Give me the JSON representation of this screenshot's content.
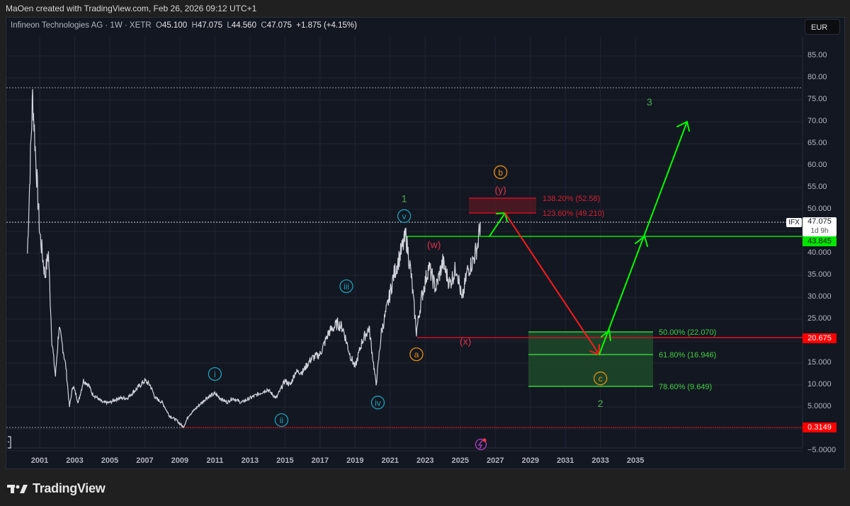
{
  "credit": "MaOen created with TradingView.com, Feb 26, 2026 09:12 UTC+1",
  "legend": {
    "symbol": "Infineon Technologies AG · 1W · XETR",
    "open_label": "O",
    "open": "45.100",
    "high_label": "H",
    "high": "47.075",
    "low_label": "L",
    "low": "44.560",
    "close_label": "C",
    "close": "47.075",
    "change": "+1.875 (+4.15%)"
  },
  "currency_button": "EUR",
  "price_tags": {
    "ticker": "IFX",
    "current": "47.075",
    "countdown": "1d 9h",
    "green_level": "43.845",
    "red_level": "20.675",
    "low_level": "0.3149"
  },
  "colors": {
    "background": "#131722",
    "green": "#00e600",
    "red": "#ff0000",
    "wave_cyan": "#1ba0b8",
    "wave_orange": "#e8900c",
    "wave_red": "#e0304a",
    "wave_green": "#4caf50",
    "price_line": "#d1d4dc"
  },
  "footer": {
    "brand": "TradingView"
  },
  "chart_data": {
    "type": "line",
    "title": "Infineon Technologies AG · 1W · XETR",
    "xlabel": "",
    "ylabel": "EUR",
    "x_ticks": [
      "2001",
      "2003",
      "2005",
      "2007",
      "2009",
      "2011",
      "2013",
      "2015",
      "2017",
      "2019",
      "2021",
      "2023",
      "2025",
      "2027",
      "2029",
      "2031",
      "2033",
      "2035"
    ],
    "y_ticks": [
      "85.00",
      "80.00",
      "75.00",
      "70.00",
      "65.00",
      "60.00",
      "55.00",
      "50.000",
      "45.000",
      "40.000",
      "35.000",
      "30.000",
      "25.000",
      "20.000",
      "15.000",
      "10.000",
      "5.0000",
      "0.3149",
      "-5.0000"
    ],
    "ylim": [
      -6,
      88
    ],
    "xlim": [
      2000,
      2039
    ],
    "grid": true,
    "series": [
      {
        "name": "IFX weekly close (approx.)",
        "x": [
          2000.3,
          2000.5,
          2000.6,
          2000.8,
          2001.0,
          2001.3,
          2001.5,
          2001.7,
          2001.9,
          2002.1,
          2002.3,
          2002.5,
          2002.7,
          2002.9,
          2003.2,
          2003.5,
          2003.8,
          2004.0,
          2004.3,
          2004.6,
          2005.0,
          2005.5,
          2006.0,
          2006.5,
          2007.0,
          2007.3,
          2007.6,
          2008.0,
          2008.4,
          2008.8,
          2009.2,
          2009.5,
          2010.0,
          2010.5,
          2011.0,
          2011.3,
          2011.7,
          2012.0,
          2012.5,
          2013.0,
          2013.5,
          2014.0,
          2014.5,
          2015.0,
          2015.3,
          2015.6,
          2016.0,
          2016.5,
          2017.0,
          2017.5,
          2018.0,
          2018.3,
          2018.7,
          2019.0,
          2019.4,
          2019.8,
          2020.2,
          2020.5,
          2020.9,
          2021.2,
          2021.6,
          2021.9,
          2022.2,
          2022.5,
          2022.8,
          2023.2,
          2023.6,
          2024.0,
          2024.4,
          2024.8,
          2025.1,
          2025.4,
          2025.7,
          2026.0,
          2026.15
        ],
        "y": [
          40,
          65,
          76,
          60,
          45,
          35,
          40,
          20,
          12,
          23,
          19,
          14,
          5,
          10,
          6,
          11,
          10,
          8,
          7,
          6,
          6,
          7,
          7,
          9,
          11,
          10,
          7,
          6,
          3,
          2,
          0.4,
          3,
          5,
          7,
          8,
          7,
          6,
          7,
          6,
          7,
          8,
          9,
          7,
          11,
          10,
          13,
          13,
          16,
          17,
          22,
          24,
          23,
          17,
          14,
          20,
          23,
          10,
          22,
          29,
          35,
          40,
          44,
          35,
          22,
          30,
          37,
          32,
          38,
          33,
          37,
          29,
          36,
          38,
          42,
          47.075
        ]
      }
    ],
    "horizontal_levels": [
      {
        "label": "all-time high (dotted)",
        "value": 77.5
      },
      {
        "label": "current price (dotted)",
        "value": 47.075
      },
      {
        "label": "wave 1 top (green)",
        "value": 43.845
      },
      {
        "label": "(x) low (red)",
        "value": 20.675
      },
      {
        "label": "2009 low (red dotted)",
        "value": 0.3149
      }
    ],
    "fib_zones": [
      {
        "color": "red",
        "levels": [
          {
            "label": "138.20% (52.58)",
            "value": 52.58
          },
          {
            "label": "123.60% (49.210)",
            "value": 49.21
          }
        ]
      },
      {
        "color": "green",
        "levels": [
          {
            "label": "50.00% (22.070)",
            "value": 22.07
          },
          {
            "label": "61.80% (16.946)",
            "value": 16.946
          },
          {
            "label": "78.60% (9.649)",
            "value": 9.649
          }
        ]
      }
    ],
    "projection_path": [
      {
        "x": 2025.7,
        "y": 43.9,
        "color": "green"
      },
      {
        "x": 2027.1,
        "y": 49.2,
        "color": "green"
      },
      {
        "x": 2033.0,
        "y": 16.9,
        "color": "red"
      },
      {
        "x": 2035.8,
        "y": 70.0,
        "color": "green"
      }
    ],
    "annotations": [
      {
        "text": "i",
        "style": "cyan circle",
        "x": 2011.0,
        "y": 12.5
      },
      {
        "text": "ii",
        "style": "cyan circle",
        "x": 2014.8,
        "y": 2.0
      },
      {
        "text": "iii",
        "style": "cyan circle",
        "x": 2018.5,
        "y": 32.5
      },
      {
        "text": "iv",
        "style": "cyan circle",
        "x": 2020.3,
        "y": 6.0
      },
      {
        "text": "v",
        "style": "cyan circle",
        "x": 2021.8,
        "y": 48.5
      },
      {
        "text": "1",
        "style": "green text",
        "x": 2021.8,
        "y": 52.5
      },
      {
        "text": "a",
        "style": "orange circle",
        "x": 2022.5,
        "y": 17.0
      },
      {
        "text": "(w)",
        "style": "red text",
        "x": 2023.5,
        "y": 42.0
      },
      {
        "text": "(x)",
        "style": "red text",
        "x": 2025.3,
        "y": 20.0
      },
      {
        "text": "(y)",
        "style": "red text",
        "x": 2027.3,
        "y": 54.5
      },
      {
        "text": "b",
        "style": "orange circle",
        "x": 2027.3,
        "y": 58.5
      },
      {
        "text": "c",
        "style": "orange circle",
        "x": 2033.0,
        "y": 11.5
      },
      {
        "text": "2",
        "style": "green text",
        "x": 2033.0,
        "y": 5.8
      },
      {
        "text": "3",
        "style": "green text",
        "x": 2035.8,
        "y": 74.5
      }
    ]
  }
}
